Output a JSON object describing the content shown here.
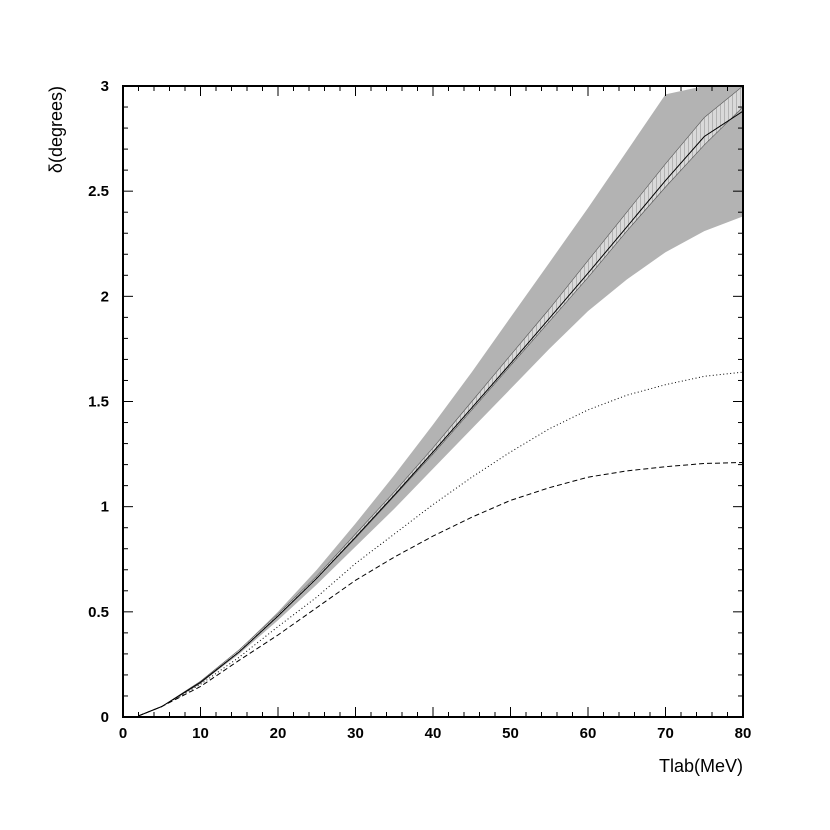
{
  "chart_data": {
    "type": "line",
    "title": "",
    "xlabel": "Tlab(MeV)",
    "ylabel": "δ(degrees)",
    "xlim": [
      0,
      80
    ],
    "ylim": [
      0,
      3
    ],
    "x_ticks": [
      "0",
      "10",
      "20",
      "30",
      "40",
      "50",
      "60",
      "70",
      "80"
    ],
    "y_ticks": [
      "0",
      "0.5",
      "1",
      "1.5",
      "2",
      "2.5",
      "3"
    ],
    "grid": false,
    "legend": "none",
    "colors": {
      "band": "#b3b3b3",
      "inner_band": "#d9d9d9",
      "line": "#000000"
    },
    "band": {
      "x": [
        2,
        5,
        10,
        15,
        20,
        25,
        30,
        35,
        40,
        45,
        50,
        55,
        60,
        65,
        70,
        75,
        80
      ],
      "lower": [
        0.005,
        0.05,
        0.16,
        0.3,
        0.46,
        0.63,
        0.81,
        0.99,
        1.18,
        1.37,
        1.56,
        1.75,
        1.93,
        2.08,
        2.21,
        2.31,
        2.38
      ],
      "upper": [
        0.005,
        0.05,
        0.17,
        0.32,
        0.5,
        0.7,
        0.92,
        1.15,
        1.39,
        1.64,
        1.9,
        2.16,
        2.42,
        2.69,
        2.96,
        3.0,
        3.0
      ]
    },
    "inner_band": {
      "x": [
        2,
        5,
        10,
        15,
        20,
        25,
        30,
        35,
        40,
        45,
        50,
        55,
        60,
        65,
        70,
        75,
        80
      ],
      "lower": [
        0.005,
        0.05,
        0.16,
        0.31,
        0.48,
        0.66,
        0.85,
        1.05,
        1.25,
        1.46,
        1.67,
        1.88,
        2.09,
        2.31,
        2.52,
        2.72,
        2.9
      ],
      "upper": [
        0.005,
        0.05,
        0.17,
        0.32,
        0.49,
        0.67,
        0.87,
        1.07,
        1.28,
        1.5,
        1.72,
        1.94,
        2.17,
        2.4,
        2.63,
        2.85,
        3.0
      ]
    },
    "series": [
      {
        "style": "solid",
        "x": [
          2,
          5,
          10,
          15,
          20,
          25,
          30,
          35,
          40,
          45,
          50,
          55,
          60,
          65,
          70,
          75,
          80
        ],
        "y": [
          0.005,
          0.05,
          0.165,
          0.31,
          0.48,
          0.66,
          0.855,
          1.055,
          1.26,
          1.47,
          1.68,
          1.895,
          2.11,
          2.33,
          2.55,
          2.76,
          2.88
        ]
      },
      {
        "style": "dotted",
        "x": [
          2,
          5,
          10,
          15,
          20,
          25,
          30,
          35,
          40,
          45,
          50,
          55,
          60,
          65,
          70,
          75,
          80
        ],
        "y": [
          0.005,
          0.05,
          0.155,
          0.285,
          0.43,
          0.57,
          0.73,
          0.87,
          1.01,
          1.14,
          1.26,
          1.37,
          1.46,
          1.53,
          1.58,
          1.62,
          1.64
        ]
      },
      {
        "style": "dashed",
        "x": [
          2,
          5,
          10,
          15,
          20,
          25,
          30,
          35,
          40,
          45,
          50,
          55,
          60,
          65,
          70,
          75,
          80
        ],
        "y": [
          0.005,
          0.05,
          0.145,
          0.27,
          0.39,
          0.52,
          0.65,
          0.76,
          0.86,
          0.95,
          1.03,
          1.09,
          1.14,
          1.17,
          1.19,
          1.205,
          1.21
        ]
      }
    ]
  }
}
